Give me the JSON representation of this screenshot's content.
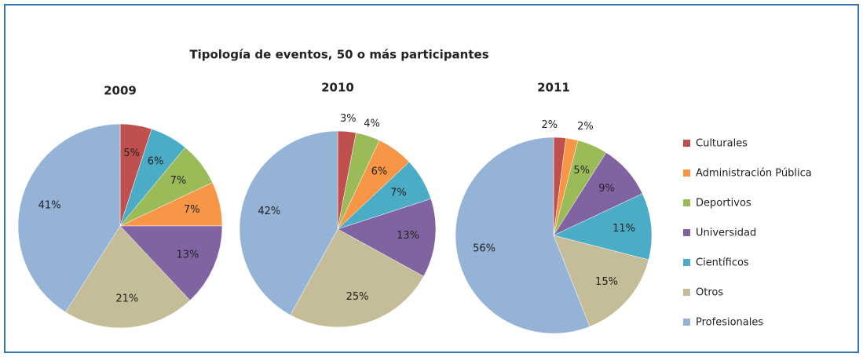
{
  "title": "Tipología de eventos, 50 o más participantes",
  "legend": [
    {
      "name": "Culturales",
      "color": "#c0504d"
    },
    {
      "name": "Administración Pública",
      "color": "#f79646"
    },
    {
      "name": "Deportivos",
      "color": "#9bbb59"
    },
    {
      "name": "Universidad",
      "color": "#8064a2"
    },
    {
      "name": "Científicos",
      "color": "#4bacc6"
    },
    {
      "name": "Otros",
      "color": "#c4bd97"
    },
    {
      "name": "Profesionales",
      "color": "#95b3d7"
    }
  ],
  "chart_data": [
    {
      "type": "pie",
      "title": "2009",
      "categories": [
        "Culturales",
        "Científicos",
        "Deportivos",
        "Administración Pública",
        "Universidad",
        "Otros",
        "Profesionales"
      ],
      "colors": [
        "#c0504d",
        "#4bacc6",
        "#9bbb59",
        "#f79646",
        "#8064a2",
        "#c4bd97",
        "#95b3d7"
      ],
      "values": [
        5,
        6,
        7,
        7,
        13,
        21,
        41
      ],
      "value_labels": [
        "5%",
        "6%",
        "7%",
        "7%",
        "13%",
        "21%",
        "41%"
      ]
    },
    {
      "type": "pie",
      "title": "2010",
      "categories": [
        "Culturales",
        "Deportivos",
        "Administración Pública",
        "Científicos",
        "Universidad",
        "Otros",
        "Profesionales"
      ],
      "colors": [
        "#c0504d",
        "#9bbb59",
        "#f79646",
        "#4bacc6",
        "#8064a2",
        "#c4bd97",
        "#95b3d7"
      ],
      "values": [
        3,
        4,
        6,
        7,
        13,
        25,
        42
      ],
      "value_labels": [
        "3%",
        "4%",
        "6%",
        "7%",
        "13%",
        "25%",
        "42%"
      ]
    },
    {
      "type": "pie",
      "title": "2011",
      "categories": [
        "Culturales",
        "Administración Pública",
        "Deportivos",
        "Universidad",
        "Científicos",
        "Otros",
        "Profesionales"
      ],
      "colors": [
        "#c0504d",
        "#f79646",
        "#9bbb59",
        "#8064a2",
        "#4bacc6",
        "#c4bd97",
        "#95b3d7"
      ],
      "values": [
        2,
        2,
        5,
        9,
        11,
        15,
        56
      ],
      "value_labels": [
        "2%",
        "2%",
        "5%",
        "9%",
        "11%",
        "15%",
        "56%"
      ]
    }
  ]
}
